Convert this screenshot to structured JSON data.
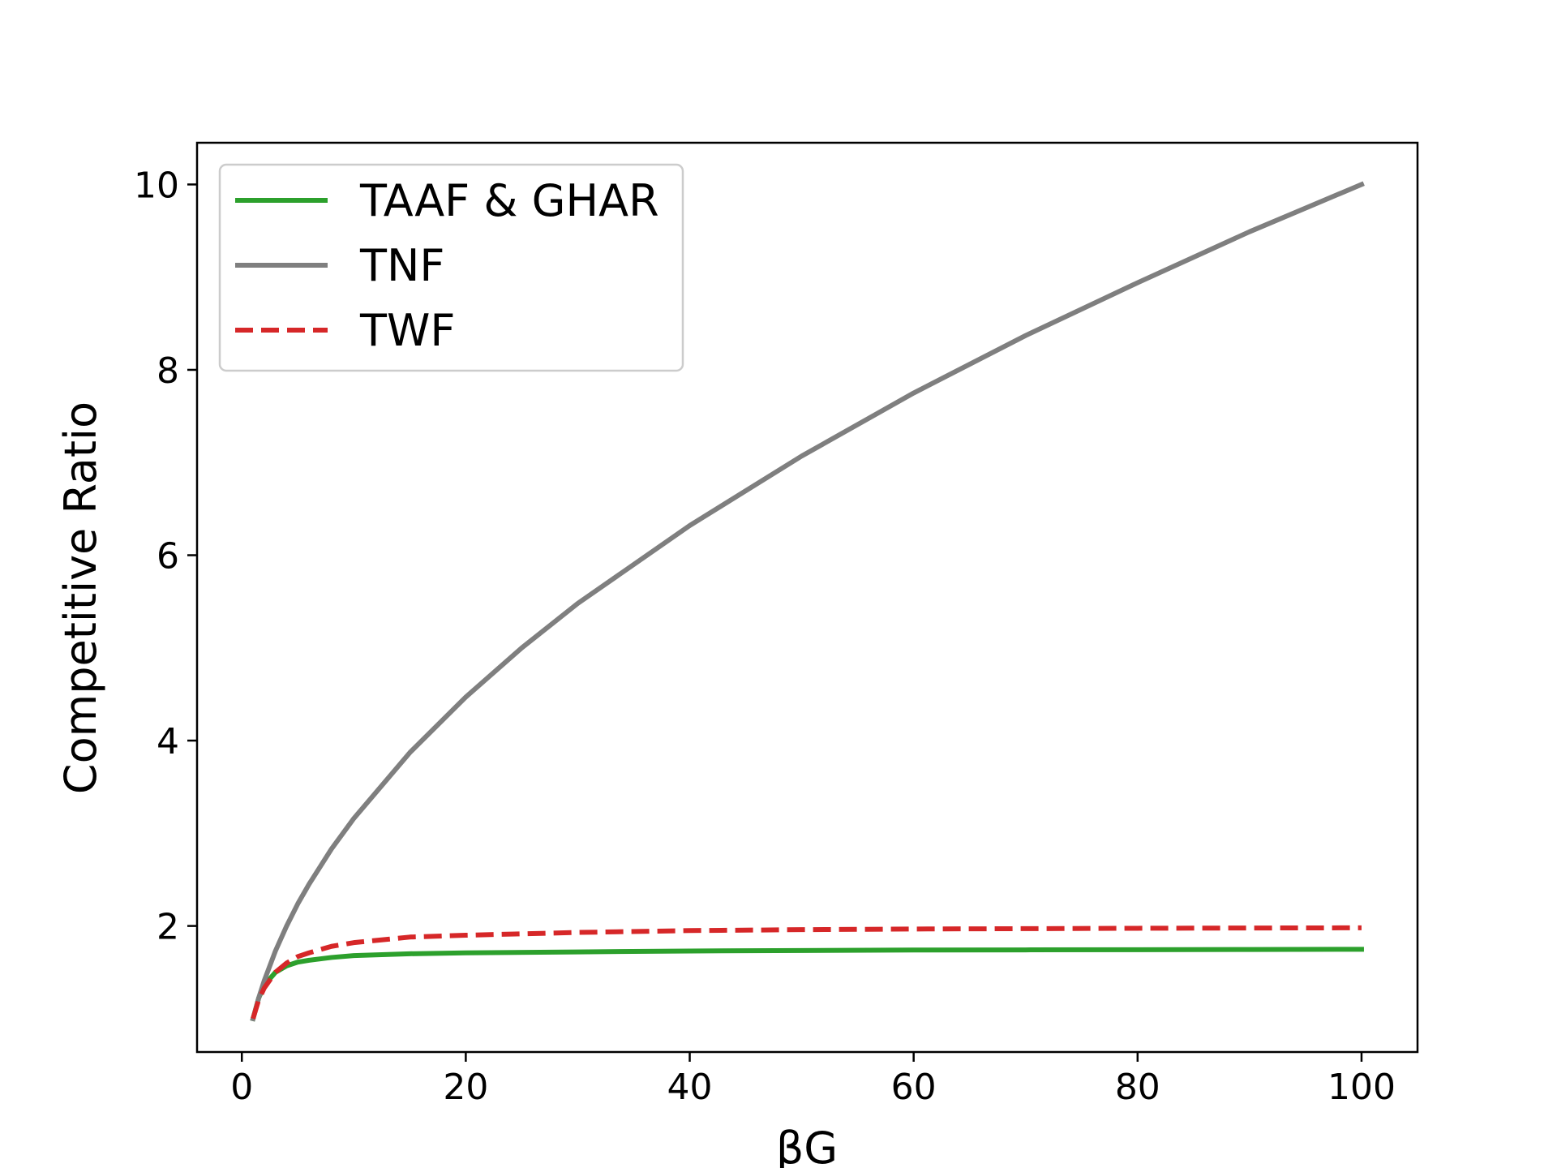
{
  "chart_data": {
    "type": "line",
    "title": "",
    "xlabel": "βG",
    "ylabel": "Competitive Ratio",
    "xlim": [
      -4,
      105
    ],
    "ylim": [
      0.64,
      10.45
    ],
    "xticks": [
      0,
      20,
      40,
      60,
      80,
      100
    ],
    "yticks": [
      2,
      4,
      6,
      8,
      10
    ],
    "xtick_labels": [
      "0",
      "20",
      "40",
      "60",
      "80",
      "100"
    ],
    "ytick_labels": [
      "2",
      "4",
      "6",
      "8",
      "10"
    ],
    "grid": false,
    "legend_position": "top-left",
    "series": [
      {
        "name": "TAAF & GHAR",
        "color": "#2ca02c",
        "dash": "solid",
        "x": [
          1,
          1.5,
          2,
          3,
          4,
          5,
          6,
          8,
          10,
          15,
          20,
          30,
          40,
          50,
          60,
          70,
          80,
          90,
          100
        ],
        "y": [
          1.0,
          1.22,
          1.36,
          1.5,
          1.57,
          1.61,
          1.63,
          1.66,
          1.68,
          1.7,
          1.71,
          1.72,
          1.73,
          1.735,
          1.74,
          1.742,
          1.744,
          1.746,
          1.748
        ]
      },
      {
        "name": "TNF",
        "color": "#7f7f7f",
        "dash": "solid",
        "x": [
          1,
          1.5,
          2,
          3,
          4,
          5,
          6,
          8,
          10,
          15,
          20,
          25,
          30,
          40,
          50,
          60,
          70,
          80,
          90,
          100
        ],
        "y": [
          1.0,
          1.22,
          1.41,
          1.73,
          2.0,
          2.24,
          2.45,
          2.83,
          3.16,
          3.87,
          4.47,
          5.0,
          5.48,
          6.32,
          7.07,
          7.75,
          8.37,
          8.94,
          9.49,
          10.0
        ]
      },
      {
        "name": "TWF",
        "color": "#d62728",
        "dash": "dashed",
        "x": [
          1,
          1.5,
          2,
          3,
          4,
          5,
          6,
          8,
          10,
          15,
          20,
          30,
          40,
          50,
          60,
          70,
          80,
          90,
          100
        ],
        "y": [
          1.0,
          1.2,
          1.33,
          1.5,
          1.6,
          1.67,
          1.71,
          1.78,
          1.82,
          1.88,
          1.9,
          1.93,
          1.95,
          1.96,
          1.967,
          1.971,
          1.975,
          1.978,
          1.98
        ]
      }
    ]
  }
}
